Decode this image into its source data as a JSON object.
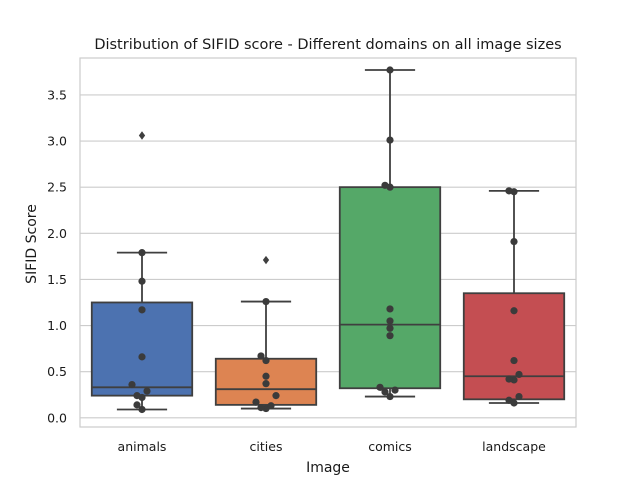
{
  "chart_data": {
    "type": "box",
    "title": "Distribution of SIFID score - Different domains on all image sizes",
    "xlabel": "Image",
    "ylabel": "SIFID Score",
    "ylim": [
      -0.1,
      3.9
    ],
    "yticks": [
      0.0,
      0.5,
      1.0,
      1.5,
      2.0,
      2.5,
      3.0,
      3.5
    ],
    "ytick_labels": [
      "0.0",
      "0.5",
      "1.0",
      "1.5",
      "2.0",
      "2.5",
      "3.0",
      "3.5"
    ],
    "grid": "horizontal",
    "categories": [
      "animals",
      "cities",
      "comics",
      "landscape"
    ],
    "series": [
      {
        "category": "animals",
        "color": "#4c72b0",
        "whisker_low": 0.09,
        "q1": 0.24,
        "median": 0.33,
        "q3": 1.25,
        "whisker_high": 1.79,
        "outliers": [
          3.06
        ],
        "points": [
          0.09,
          0.14,
          0.22,
          0.24,
          0.29,
          0.36,
          0.66,
          1.17,
          1.48,
          1.79
        ]
      },
      {
        "category": "cities",
        "color": "#dd8452",
        "whisker_low": 0.1,
        "q1": 0.14,
        "median": 0.31,
        "q3": 0.64,
        "whisker_high": 1.26,
        "outliers": [
          1.71
        ],
        "points": [
          0.1,
          0.11,
          0.13,
          0.17,
          0.24,
          0.37,
          0.45,
          0.62,
          0.67,
          1.26
        ]
      },
      {
        "category": "comics",
        "color": "#55a868",
        "whisker_low": 0.23,
        "q1": 0.32,
        "median": 1.01,
        "q3": 2.5,
        "whisker_high": 3.77,
        "outliers": [],
        "points": [
          0.23,
          0.28,
          0.3,
          0.33,
          0.89,
          0.97,
          1.05,
          1.18,
          2.5,
          2.52,
          3.01,
          3.77
        ]
      },
      {
        "category": "landscape",
        "color": "#c44e52",
        "whisker_low": 0.16,
        "q1": 0.2,
        "median": 0.45,
        "q3": 1.35,
        "whisker_high": 2.46,
        "outliers": [],
        "points": [
          0.16,
          0.19,
          0.23,
          0.41,
          0.42,
          0.47,
          0.62,
          1.16,
          1.91,
          2.45,
          2.46
        ]
      }
    ]
  }
}
